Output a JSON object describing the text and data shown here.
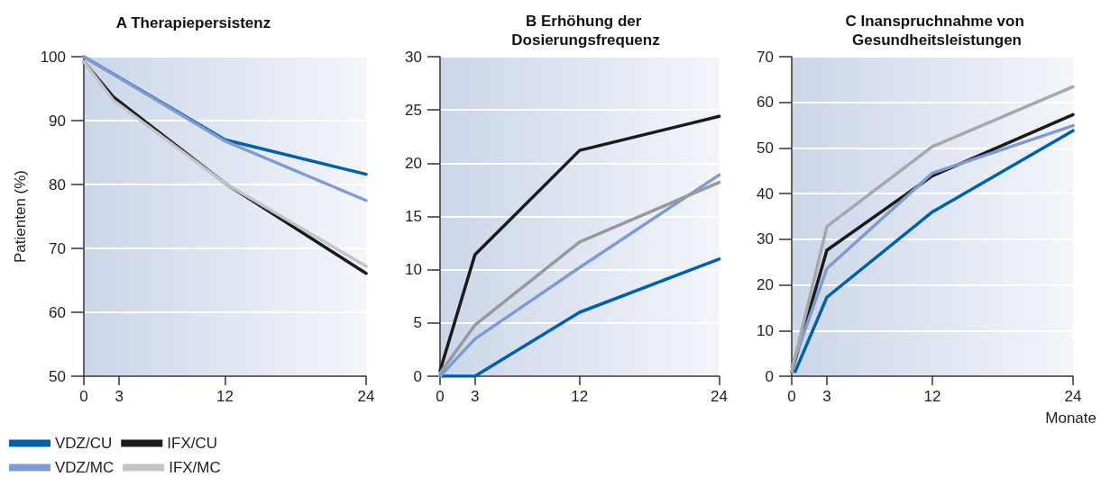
{
  "chart_data": [
    {
      "type": "line",
      "title": "A Therapiepersistenz",
      "ylabel": "Patienten (%)",
      "xlim": [
        0,
        24
      ],
      "xticks": [
        0,
        3,
        12,
        24
      ],
      "ylim": [
        50,
        100
      ],
      "yticks": [
        50,
        60,
        70,
        80,
        90,
        100
      ],
      "grid": "y",
      "legend": "bottom left",
      "marker": "none",
      "line_style": "solid",
      "series": [
        {
          "name": "VDZ/CU",
          "color": "#0061a9",
          "x": [
            0,
            12,
            24
          ],
          "values": [
            100,
            87,
            81.6
          ]
        },
        {
          "name": "IFX/CU",
          "color": "#1b1b1b",
          "x": [
            0,
            2.5,
            12,
            24
          ],
          "values": [
            99.2,
            93.7,
            80.2,
            66.1
          ]
        },
        {
          "name": "VDZ/MC",
          "color": "#7f9bd2",
          "x": [
            0,
            12,
            24
          ],
          "values": [
            100,
            86.8,
            77.5
          ]
        },
        {
          "name": "IFX/MC",
          "color": "#c4c4c4",
          "x": [
            0,
            2.5,
            12,
            24
          ],
          "values": [
            99.2,
            93.2,
            80.2,
            67.2
          ]
        }
      ]
    },
    {
      "type": "line",
      "title": "B Erhöhung der Dosierungsfrequenz",
      "xlim": [
        0,
        24
      ],
      "xticks": [
        0,
        3,
        12,
        24
      ],
      "ylim": [
        0,
        30
      ],
      "yticks": [
        0,
        5,
        10,
        15,
        20,
        25,
        30
      ],
      "grid": "y",
      "marker": "none",
      "line_style": "solid",
      "series": [
        {
          "color": "#0061a9",
          "x": [
            0,
            3,
            12,
            24
          ],
          "values": [
            0,
            0,
            6.0,
            11.0
          ]
        },
        {
          "color": "#1b1b1b",
          "x": [
            0,
            3,
            12,
            24
          ],
          "values": [
            0.5,
            11.4,
            21.2,
            24.4
          ]
        },
        {
          "color": "#7f9bd2",
          "x": [
            0,
            3,
            12,
            24
          ],
          "values": [
            0,
            3.5,
            10.2,
            18.9
          ]
        },
        {
          "color": "#999999",
          "x": [
            0,
            3,
            12,
            24
          ],
          "values": [
            0.3,
            4.8,
            12.6,
            18.2
          ]
        }
      ]
    },
    {
      "type": "line",
      "title": "C Inanspruchnahme von Gesundheitsleistungen",
      "xlabel": "Monate",
      "xlim": [
        0,
        24
      ],
      "xticks": [
        0,
        3,
        12,
        24
      ],
      "ylim": [
        0,
        70
      ],
      "yticks": [
        0,
        10,
        20,
        30,
        40,
        50,
        60,
        70
      ],
      "grid": "y",
      "marker": "none",
      "line_style": "solid",
      "series": [
        {
          "color": "#0061a9",
          "x": [
            0.3,
            3,
            12,
            24
          ],
          "values": [
            1,
            17.3,
            36.0,
            53.8
          ]
        },
        {
          "color": "#1b1b1b",
          "x": [
            0,
            3,
            12,
            24
          ],
          "values": [
            1,
            27.6,
            43.9,
            57.3
          ]
        },
        {
          "color": "#7f9bd2",
          "x": [
            0,
            3,
            12,
            24
          ],
          "values": [
            2,
            23.6,
            44.5,
            54.9
          ]
        },
        {
          "color": "#a8a8a8",
          "x": [
            0,
            3,
            12,
            24
          ],
          "values": [
            1,
            32.8,
            50.3,
            63.4
          ]
        }
      ]
    }
  ]
}
